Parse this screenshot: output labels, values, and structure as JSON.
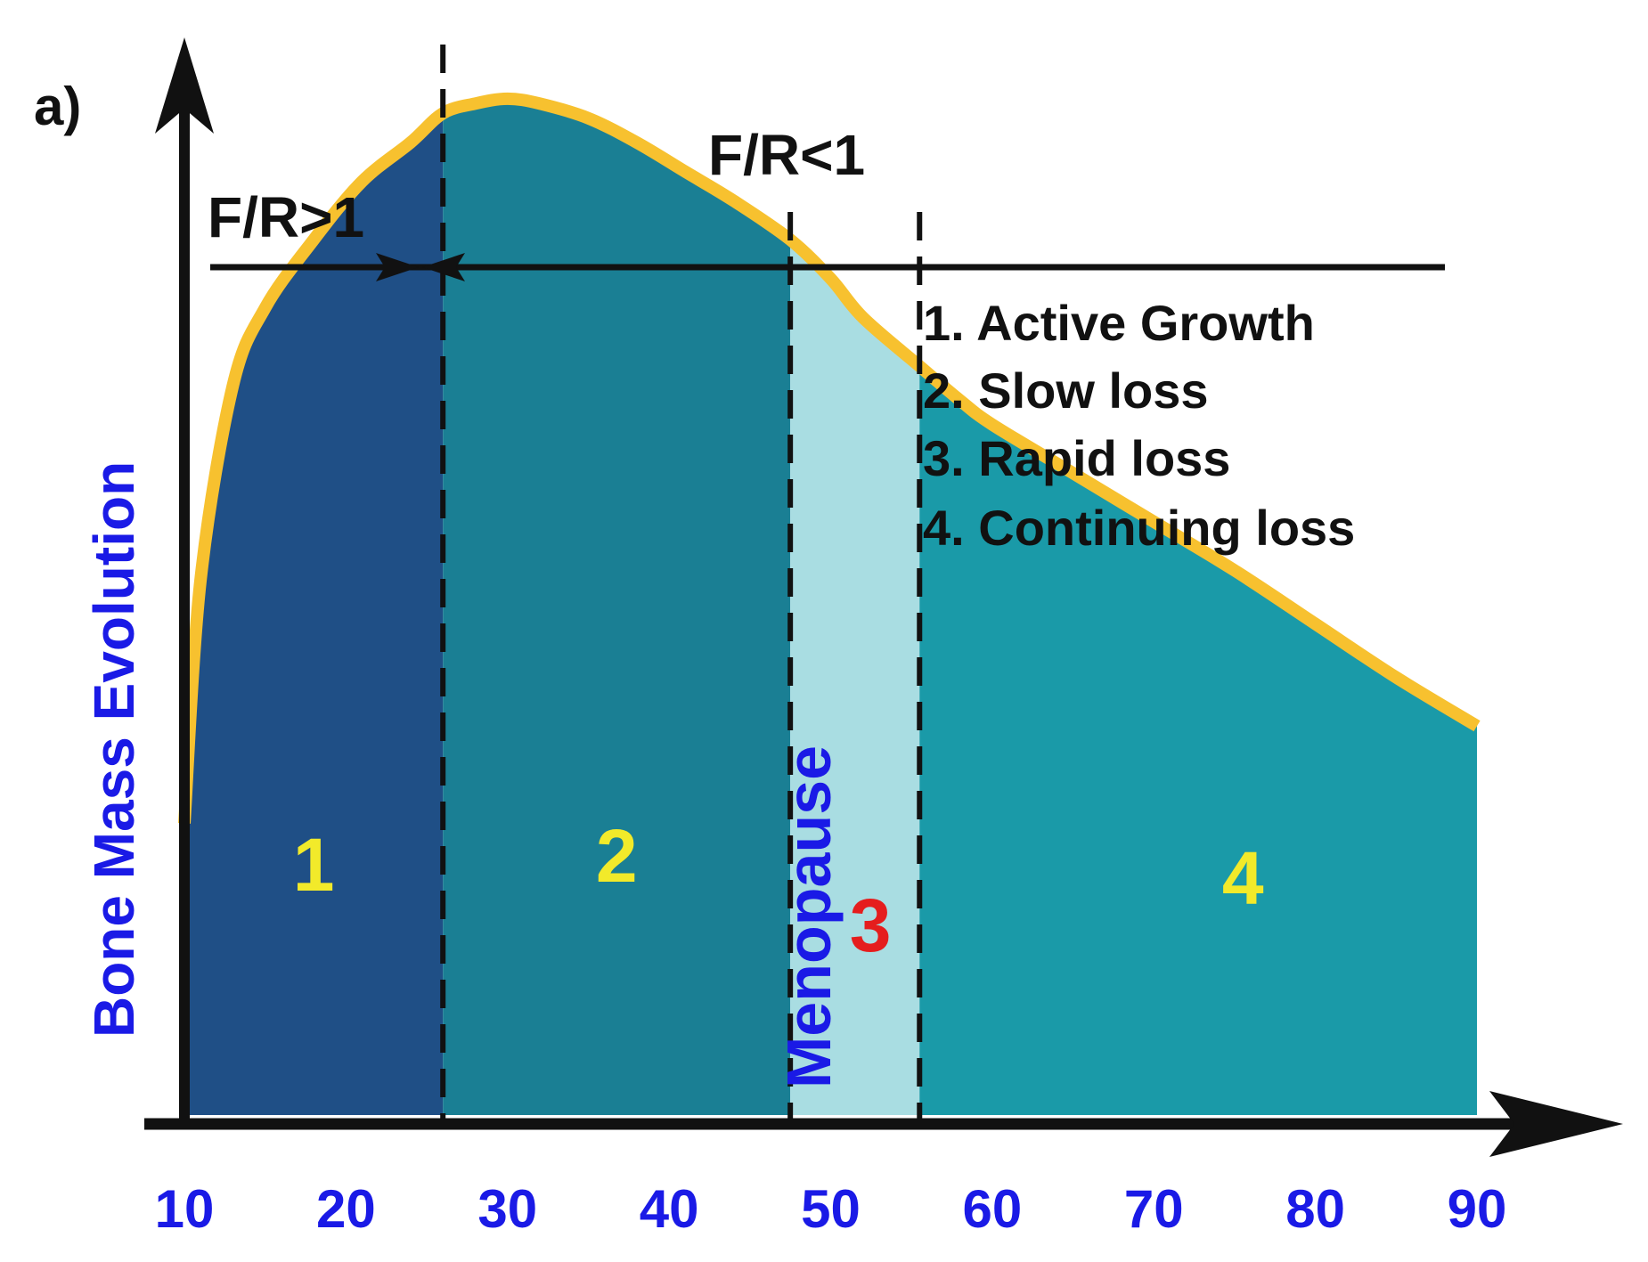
{
  "panel_label": "a)",
  "chart_data": {
    "type": "area",
    "title": "",
    "xlabel": "",
    "ylabel": "Bone Mass Evolution",
    "xlim": [
      10,
      90
    ],
    "ylim": [
      0,
      100
    ],
    "x_ticks": [
      "10",
      "20",
      "30",
      "40",
      "50",
      "60",
      "70",
      "80",
      "90"
    ],
    "series": [
      {
        "x": [
          10,
          11,
          13,
          15,
          18,
          21,
          24,
          26,
          28,
          30,
          32,
          35,
          38,
          41,
          44,
          47.5,
          50,
          52,
          55.5,
          58,
          60,
          65,
          70,
          75,
          80,
          85,
          90
        ],
        "y": [
          30,
          55,
          75,
          83,
          90,
          96,
          100,
          103,
          104,
          104.5,
          104,
          102.5,
          100,
          97,
          94,
          90,
          86,
          82,
          77,
          73.5,
          71,
          66,
          61,
          56,
          50.5,
          45,
          40
        ]
      }
    ],
    "phases": [
      {
        "label": "1",
        "from": 10,
        "to": 26,
        "color": "#1f4f86",
        "label_color": "#f2ea2a"
      },
      {
        "label": "2",
        "from": 26,
        "to": 47.5,
        "color": "#1a7f94",
        "label_color": "#f2ea2a"
      },
      {
        "label": "3",
        "from": 47.5,
        "to": 55.5,
        "color": "#a9dde2",
        "label_color": "#e51d1d"
      },
      {
        "label": "4",
        "from": 55.5,
        "to": 90,
        "color": "#1a9aa8",
        "label_color": "#f2ea2a"
      }
    ],
    "dashed_lines_x": [
      26,
      47.5,
      55.5
    ],
    "ratio_labels": [
      "F/R>1",
      "F/R<1"
    ],
    "menopause_label": "Menopause",
    "legend": [
      "1. Active Growth",
      "2. Slow loss",
      "3. Rapid loss",
      "4. Continuing loss"
    ],
    "colors": {
      "outline": "#f7c12f",
      "axis": "#111111",
      "tick_labels": "#1a1ae6",
      "ylabel": "#1a1ae6"
    }
  }
}
